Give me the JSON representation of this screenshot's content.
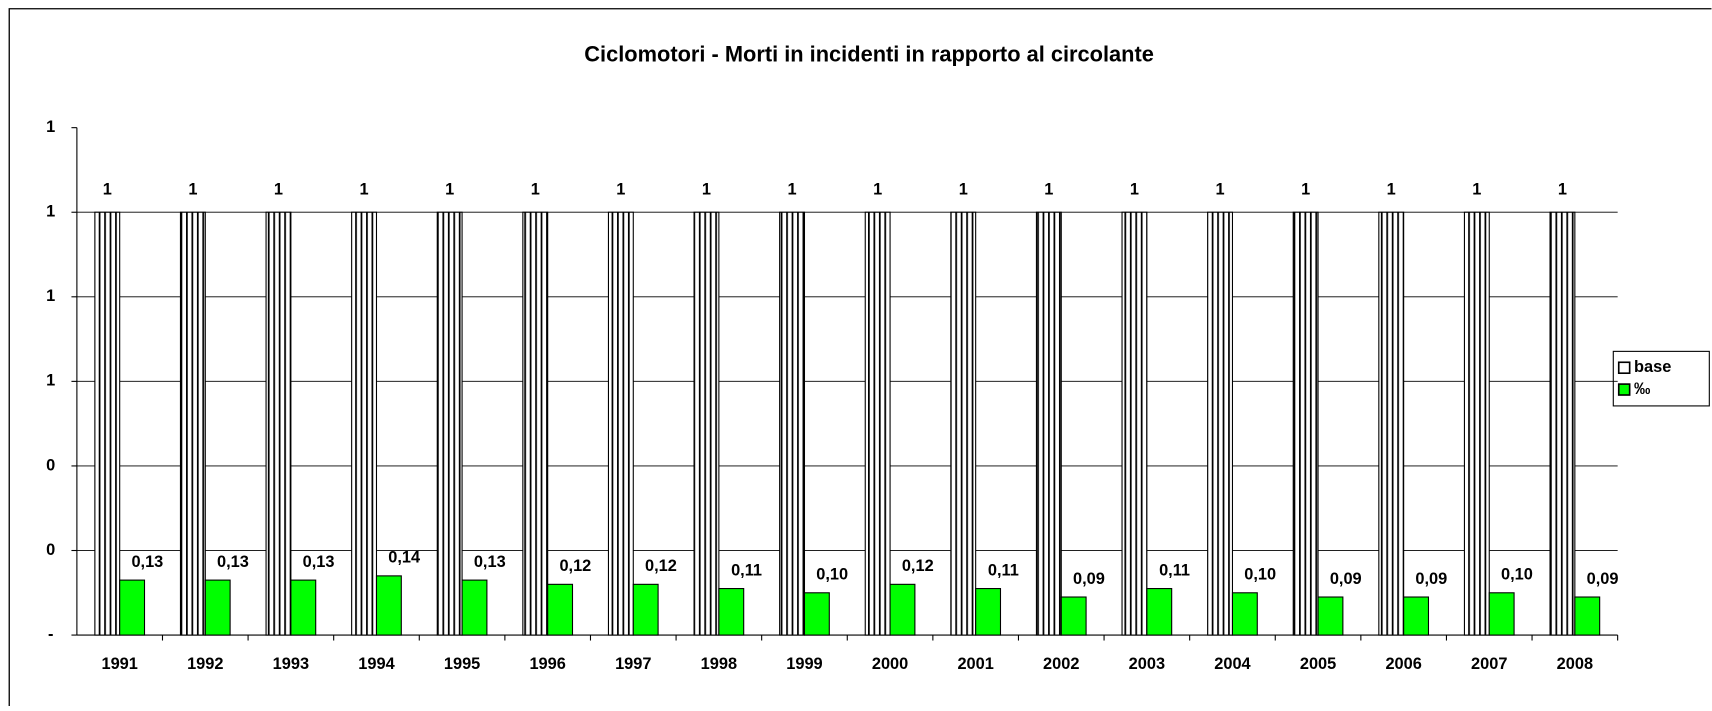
{
  "chart_data": {
    "type": "bar",
    "title": "Ciclomotori - Morti in incidenti in rapporto al circolante",
    "categories": [
      "1991",
      "1992",
      "1993",
      "1994",
      "1995",
      "1996",
      "1997",
      "1998",
      "1999",
      "2000",
      "2001",
      "2002",
      "2003",
      "2004",
      "2005",
      "2006",
      "2007",
      "2008"
    ],
    "series": [
      {
        "name": "base",
        "color": "#ffffff",
        "values": [
          1,
          1,
          1,
          1,
          1,
          1,
          1,
          1,
          1,
          1,
          1,
          1,
          1,
          1,
          1,
          1,
          1,
          1
        ]
      },
      {
        "name": "‰",
        "color": "#00ff00",
        "values": [
          0.13,
          0.13,
          0.13,
          0.14,
          0.13,
          0.12,
          0.12,
          0.11,
          0.1,
          0.12,
          0.11,
          0.09,
          0.11,
          0.1,
          0.09,
          0.09,
          0.1,
          0.09
        ],
        "value_labels": [
          "0,13",
          "0,13",
          "0,13",
          "0,14",
          "0,13",
          "0,12",
          "0,12",
          "0,11",
          "0,10",
          "0,12",
          "0,11",
          "0,09",
          "0,11",
          "0,10",
          "0,09",
          "0,09",
          "0,10",
          "0,09"
        ]
      }
    ],
    "ylim": [
      0,
      1.2
    ],
    "yticks": [
      {
        "value": 0,
        "label": "-"
      },
      {
        "value": 0.2,
        "label": "0"
      },
      {
        "value": 0.4,
        "label": "0"
      },
      {
        "value": 0.6,
        "label": "1"
      },
      {
        "value": 0.8,
        "label": "1"
      },
      1,
      {
        "value": 1.2,
        "label": "1"
      }
    ],
    "grid": true,
    "legend": "right"
  }
}
